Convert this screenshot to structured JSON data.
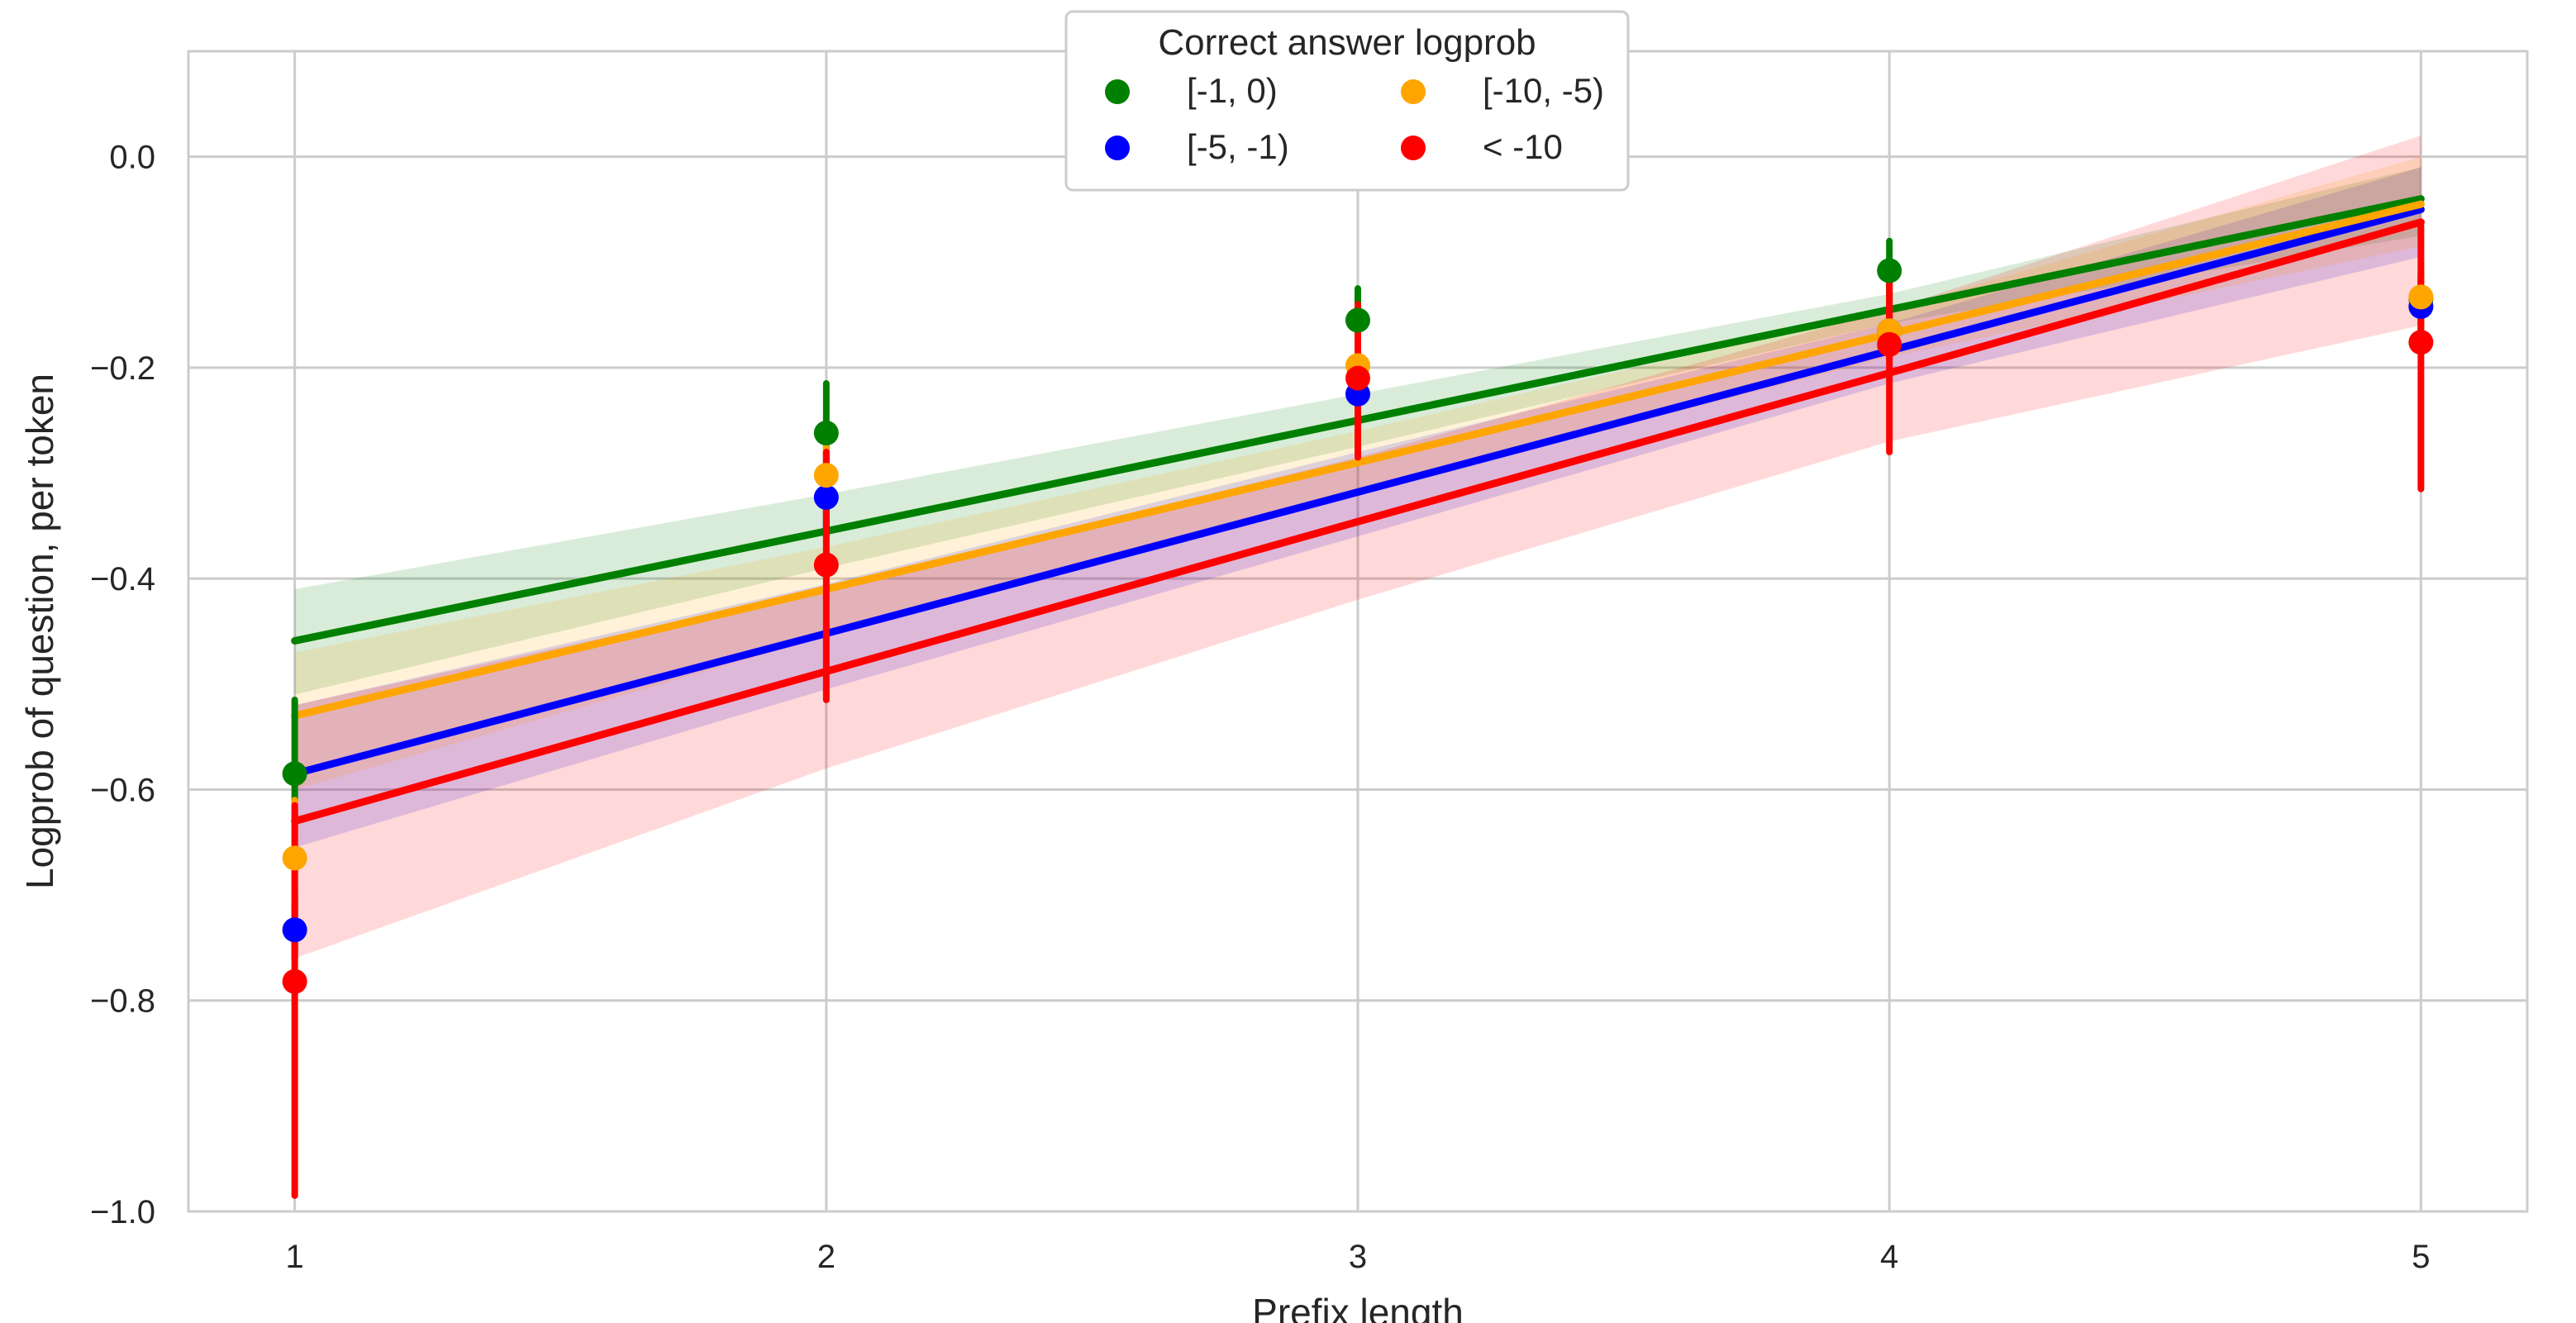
{
  "chart_data": {
    "type": "scatter",
    "xlabel": "Prefix length",
    "ylabel": "Logprob of question, per token",
    "x": [
      1,
      2,
      3,
      4,
      5
    ],
    "xlim": [
      0.8,
      5.2
    ],
    "ylim": [
      -1.0,
      0.1
    ],
    "xticks": [
      "1",
      "2",
      "3",
      "4",
      "5"
    ],
    "yticks": [
      "0.0",
      "−0.2",
      "−0.4",
      "−0.6",
      "−0.8",
      "−1.0"
    ],
    "ytick_values": [
      0.0,
      -0.2,
      -0.4,
      -0.6,
      -0.8,
      -1.0
    ],
    "grid": true,
    "legend": {
      "title": "Correct answer logprob",
      "placement": "top-center",
      "columns": 2
    },
    "series": [
      {
        "name": "[-1, 0)",
        "color": "#008000",
        "points": [
          -0.585,
          -0.262,
          -0.155,
          -0.108,
          -0.135
        ],
        "err_low": [
          -0.625,
          -0.305,
          -0.185,
          -0.138,
          -0.165
        ],
        "err_high": [
          -0.515,
          -0.215,
          -0.125,
          -0.08,
          -0.11
        ],
        "fit": [
          -0.459,
          -0.355,
          -0.25,
          -0.145,
          -0.04
        ],
        "band_low": [
          -0.51,
          -0.39,
          -0.275,
          -0.158,
          -0.075
        ],
        "band_high": [
          -0.41,
          -0.32,
          -0.225,
          -0.13,
          -0.01
        ]
      },
      {
        "name": "[-5, -1)",
        "color": "#0000ff",
        "points": [
          -0.733,
          -0.323,
          -0.225,
          -0.165,
          -0.142
        ],
        "err_low": [
          -0.76,
          -0.36,
          -0.26,
          -0.19,
          -0.17
        ],
        "err_high": [
          -0.7,
          -0.29,
          -0.195,
          -0.14,
          -0.115
        ],
        "fit": [
          -0.585,
          -0.452,
          -0.318,
          -0.184,
          -0.05
        ],
        "band_low": [
          -0.655,
          -0.505,
          -0.36,
          -0.215,
          -0.095
        ],
        "band_high": [
          -0.52,
          -0.405,
          -0.28,
          -0.158,
          -0.01
        ]
      },
      {
        "name": "[-10, -5)",
        "color": "#ffa500",
        "points": [
          -0.665,
          -0.302,
          -0.198,
          -0.165,
          -0.133
        ],
        "err_low": [
          -0.71,
          -0.34,
          -0.235,
          -0.195,
          -0.165
        ],
        "err_high": [
          -0.61,
          -0.265,
          -0.165,
          -0.135,
          -0.1
        ],
        "fit": [
          -0.53,
          -0.41,
          -0.29,
          -0.168,
          -0.045
        ],
        "band_low": [
          -0.6,
          -0.455,
          -0.32,
          -0.19,
          -0.085
        ],
        "band_high": [
          -0.47,
          -0.37,
          -0.26,
          -0.145,
          0.0
        ]
      },
      {
        "name": "< -10",
        "color": "#ff0000",
        "points": [
          -0.782,
          -0.387,
          -0.21,
          -0.178,
          -0.176
        ],
        "err_low": [
          -0.985,
          -0.515,
          -0.285,
          -0.28,
          -0.315
        ],
        "err_high": [
          -0.615,
          -0.28,
          -0.14,
          -0.105,
          -0.065
        ],
        "fit": [
          -0.63,
          -0.488,
          -0.346,
          -0.205,
          -0.062
        ],
        "band_low": [
          -0.76,
          -0.58,
          -0.42,
          -0.27,
          -0.16
        ],
        "band_high": [
          -0.52,
          -0.41,
          -0.285,
          -0.145,
          0.02
        ]
      }
    ]
  }
}
